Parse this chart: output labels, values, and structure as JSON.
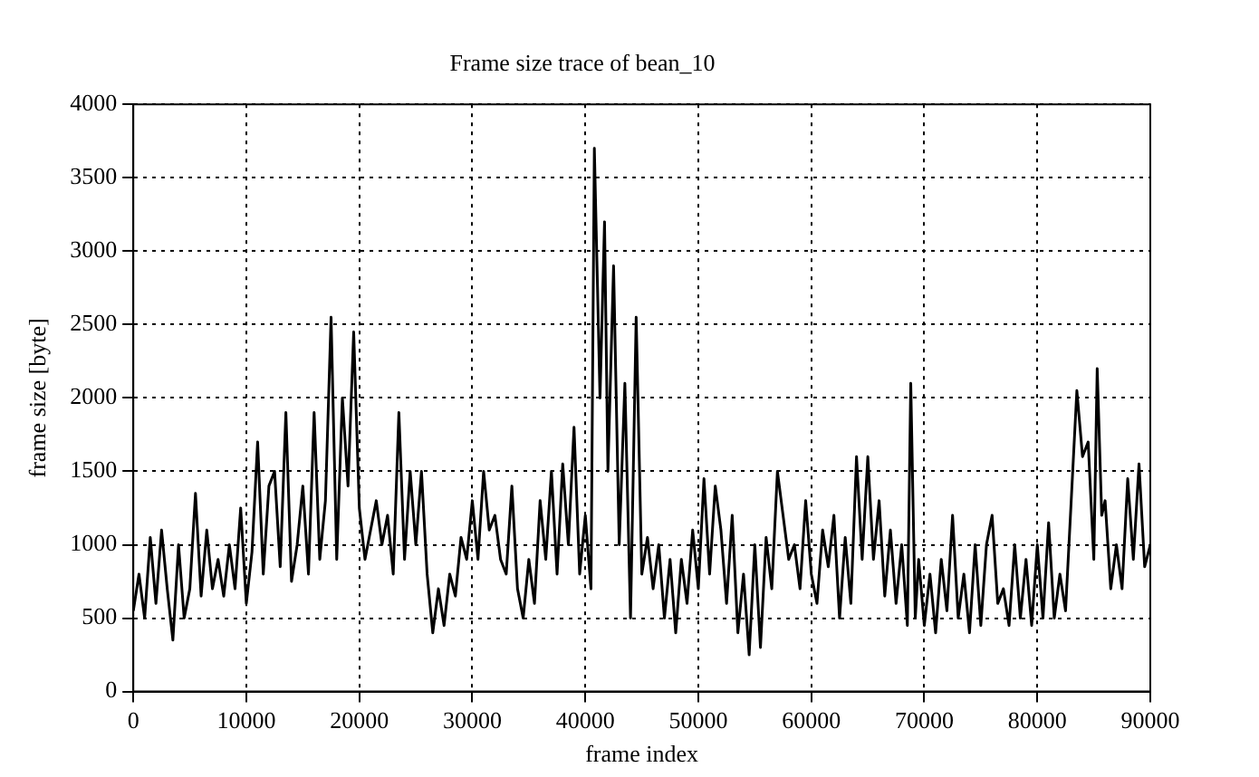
{
  "chart_data": {
    "type": "line",
    "title": "Frame size trace of bean_10",
    "xlabel": "frame index",
    "ylabel": "frame size [byte]",
    "x": [
      0,
      500,
      1000,
      1500,
      2000,
      2500,
      3000,
      3500,
      4000,
      4500,
      5000,
      5500,
      6000,
      6500,
      7000,
      7500,
      8000,
      8500,
      9000,
      9500,
      10000,
      10500,
      11000,
      11500,
      12000,
      12500,
      13000,
      13500,
      14000,
      14500,
      15000,
      15500,
      16000,
      16500,
      17000,
      17500,
      18000,
      18500,
      19000,
      19500,
      20000,
      20500,
      21000,
      21500,
      22000,
      22500,
      23000,
      23500,
      24000,
      24500,
      25000,
      25500,
      26000,
      26500,
      27000,
      27500,
      28000,
      28500,
      29000,
      29500,
      30000,
      30500,
      31000,
      31500,
      32000,
      32500,
      33000,
      33500,
      34000,
      34500,
      35000,
      35500,
      36000,
      36500,
      37000,
      37500,
      38000,
      38500,
      39000,
      39500,
      40000,
      40500,
      40800,
      41300,
      41700,
      42000,
      42500,
      43000,
      43500,
      44000,
      44500,
      45000,
      45500,
      46000,
      46500,
      47000,
      47500,
      48000,
      48500,
      49000,
      49500,
      50000,
      50500,
      51000,
      51500,
      52000,
      52500,
      53000,
      53500,
      54000,
      54500,
      55000,
      55500,
      56000,
      56500,
      57000,
      57500,
      58000,
      58500,
      59000,
      59500,
      60000,
      60500,
      61000,
      61500,
      62000,
      62500,
      63000,
      63500,
      64000,
      64500,
      65000,
      65500,
      66000,
      66500,
      67000,
      67500,
      68000,
      68500,
      68800,
      69200,
      69500,
      70000,
      70500,
      71000,
      71500,
      72000,
      72500,
      73000,
      73500,
      74000,
      74500,
      75000,
      75500,
      76000,
      76500,
      77000,
      77500,
      78000,
      78500,
      79000,
      79500,
      80000,
      80500,
      81000,
      81500,
      82000,
      82500,
      83000,
      83500,
      84000,
      84500,
      85000,
      85300,
      85700,
      86000,
      86500,
      87000,
      87500,
      88000,
      88500,
      89000,
      89500,
      90000
    ],
    "series": [
      {
        "color": "#000000",
        "values": [
          550,
          800,
          500,
          1050,
          600,
          1100,
          700,
          350,
          1000,
          500,
          700,
          1350,
          650,
          1100,
          700,
          900,
          650,
          1000,
          700,
          1250,
          600,
          950,
          1700,
          800,
          1400,
          1500,
          850,
          1900,
          750,
          1000,
          1400,
          800,
          1900,
          900,
          1300,
          2550,
          900,
          2000,
          1400,
          2450,
          1250,
          900,
          1100,
          1300,
          1000,
          1200,
          800,
          1900,
          900,
          1500,
          1000,
          1500,
          800,
          400,
          700,
          450,
          800,
          650,
          1050,
          900,
          1300,
          900,
          1500,
          1100,
          1200,
          900,
          800,
          1400,
          700,
          500,
          900,
          600,
          1300,
          900,
          1500,
          800,
          1550,
          1000,
          1800,
          800,
          1200,
          700,
          3700,
          2000,
          3200,
          1500,
          2900,
          1000,
          2100,
          500,
          2550,
          800,
          1050,
          700,
          1000,
          500,
          900,
          400,
          900,
          600,
          1100,
          700,
          1450,
          800,
          1400,
          1100,
          600,
          1200,
          400,
          800,
          250,
          1000,
          300,
          1050,
          700,
          1500,
          1200,
          900,
          1000,
          700,
          1300,
          800,
          600,
          1100,
          850,
          1200,
          500,
          1050,
          600,
          1600,
          900,
          1600,
          900,
          1300,
          650,
          1100,
          600,
          1000,
          450,
          2100,
          500,
          900,
          450,
          800,
          400,
          900,
          550,
          1200,
          500,
          800,
          400,
          1000,
          450,
          1000,
          1200,
          600,
          700,
          450,
          1000,
          500,
          900,
          450,
          1000,
          500,
          1150,
          500,
          800,
          550,
          1300,
          2050,
          1600,
          1700,
          900,
          2200,
          1200,
          1300,
          700,
          1000,
          700,
          1450,
          900,
          1550,
          850,
          1000
        ]
      }
    ],
    "xlim": [
      0,
      90000
    ],
    "xticks": [
      0,
      10000,
      20000,
      30000,
      40000,
      50000,
      60000,
      70000,
      80000,
      90000
    ],
    "ylim": [
      0,
      4000
    ],
    "yticks": [
      0,
      500,
      1000,
      1500,
      2000,
      2500,
      3000,
      3500,
      4000
    ],
    "grid": true,
    "marker": "none",
    "line_style": "solid"
  }
}
